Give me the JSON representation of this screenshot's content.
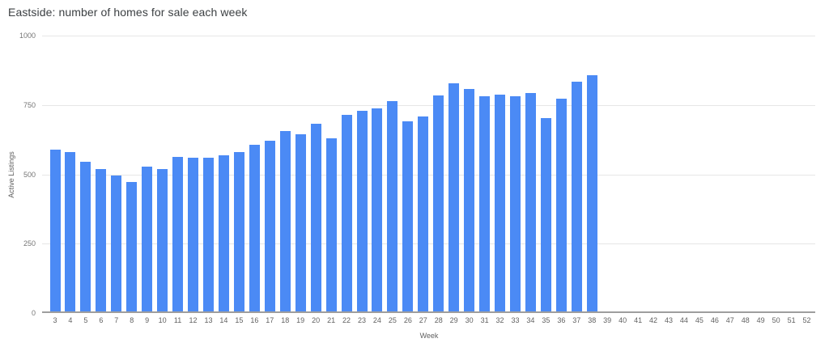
{
  "chart_data": {
    "type": "bar",
    "title": "Eastside: number of homes for sale each week",
    "xlabel": "Week",
    "ylabel": "Active Listings",
    "categories": [
      3,
      4,
      5,
      6,
      7,
      8,
      9,
      10,
      11,
      12,
      13,
      14,
      15,
      16,
      17,
      18,
      19,
      20,
      21,
      22,
      23,
      24,
      25,
      26,
      27,
      28,
      29,
      30,
      31,
      32,
      33,
      34,
      35,
      36,
      37,
      38,
      39,
      40,
      41,
      42,
      43,
      44,
      45,
      46,
      47,
      48,
      49,
      50,
      51,
      52
    ],
    "values": [
      590,
      580,
      545,
      520,
      495,
      472,
      528,
      518,
      562,
      560,
      560,
      568,
      580,
      606,
      620,
      655,
      644,
      682,
      630,
      714,
      730,
      738,
      765,
      691,
      708,
      785,
      828,
      808,
      782,
      786,
      781,
      793,
      702,
      774,
      833,
      858,
      null,
      null,
      null,
      null,
      null,
      null,
      null,
      null,
      null,
      null,
      null,
      null,
      null,
      null
    ],
    "yticks": [
      0,
      250,
      500,
      750,
      1000
    ],
    "ylim": [
      0,
      1000
    ],
    "grid": true,
    "legend": "none",
    "bar_color": "#4b8af5"
  },
  "colors": {
    "bar": "#4b8af5",
    "gridline": "#e6e6e6",
    "baseline": "#9e9e9e",
    "title_text": "#3c4043",
    "y_tick_text": "#757575",
    "x_tick_text": "#616161",
    "axis_title_text": "#616161",
    "background": "#ffffff"
  }
}
